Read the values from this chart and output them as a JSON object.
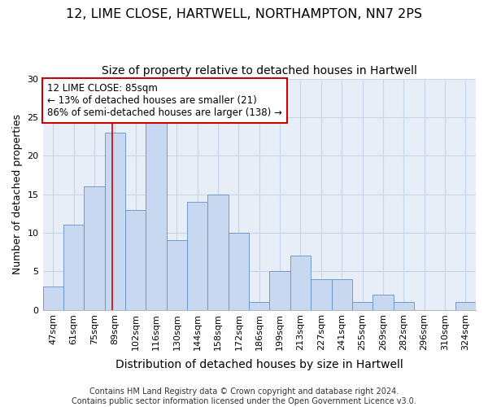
{
  "title_line1": "12, LIME CLOSE, HARTWELL, NORTHAMPTON, NN7 2PS",
  "title_line2": "Size of property relative to detached houses in Hartwell",
  "xlabel": "Distribution of detached houses by size in Hartwell",
  "ylabel": "Number of detached properties",
  "categories": [
    "47sqm",
    "61sqm",
    "75sqm",
    "89sqm",
    "102sqm",
    "116sqm",
    "130sqm",
    "144sqm",
    "158sqm",
    "172sqm",
    "186sqm",
    "199sqm",
    "213sqm",
    "227sqm",
    "241sqm",
    "255sqm",
    "269sqm",
    "282sqm",
    "296sqm",
    "310sqm",
    "324sqm"
  ],
  "values": [
    3,
    11,
    16,
    23,
    13,
    25,
    9,
    14,
    15,
    10,
    1,
    5,
    7,
    4,
    4,
    1,
    2,
    1,
    0,
    0,
    1
  ],
  "bar_color": "#c8d8f0",
  "bar_edge_color": "#6090c8",
  "bar_width": 1.0,
  "ylim": [
    0,
    30
  ],
  "yticks": [
    0,
    5,
    10,
    15,
    20,
    25,
    30
  ],
  "grid_color": "#c8d4e8",
  "bg_color": "#e8eef8",
  "annotation_line1": "12 LIME CLOSE: 85sqm",
  "annotation_line2": "← 13% of detached houses are smaller (21)",
  "annotation_line3": "86% of semi-detached houses are larger (138) →",
  "annotation_box_edge": "#cc0000",
  "vline_color": "#cc0000",
  "footer_line1": "Contains HM Land Registry data © Crown copyright and database right 2024.",
  "footer_line2": "Contains public sector information licensed under the Open Government Licence v3.0.",
  "title_fontsize": 11.5,
  "subtitle_fontsize": 10,
  "ylabel_fontsize": 9,
  "xlabel_fontsize": 10,
  "tick_fontsize": 8,
  "annotation_fontsize": 8.5,
  "footer_fontsize": 7
}
